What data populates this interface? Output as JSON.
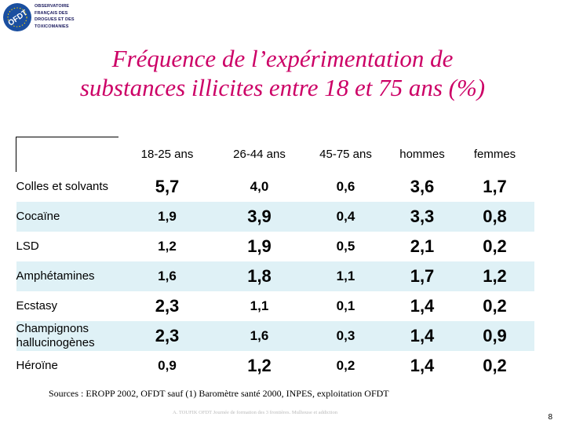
{
  "logo": {
    "badge": "OFDT",
    "lines": [
      "OBSERVATOIRE",
      "FRANÇAIS DES",
      "DROGUES ET DES",
      "TOXICOMANIES"
    ]
  },
  "title": {
    "line1": "Fréquence de l’expérimentation de",
    "line2": "substances illicites entre 18 et 75 ans (%)"
  },
  "table": {
    "headers": [
      "18-25 ans",
      "26-44 ans",
      "45-75 ans",
      "hommes",
      "femmes"
    ],
    "rows": [
      {
        "label": "Colles et solvants",
        "values": [
          "5,7",
          "4,0",
          "0,6",
          "3,6",
          "1,7"
        ],
        "big": [
          true,
          false,
          false,
          true,
          true
        ]
      },
      {
        "label": "Cocaïne",
        "values": [
          "1,9",
          "3,9",
          "0,4",
          "3,3",
          "0,8"
        ],
        "big": [
          false,
          true,
          false,
          true,
          true
        ]
      },
      {
        "label": "LSD",
        "values": [
          "1,2",
          "1,9",
          "0,5",
          "2,1",
          "0,2"
        ],
        "big": [
          false,
          true,
          false,
          true,
          true
        ]
      },
      {
        "label": "Amphétamines",
        "values": [
          "1,6",
          "1,8",
          "1,1",
          "1,7",
          "1,2"
        ],
        "big": [
          false,
          true,
          false,
          true,
          true
        ]
      },
      {
        "label": "Ecstasy",
        "values": [
          "2,3",
          "1,1",
          "0,1",
          "1,4",
          "0,2"
        ],
        "big": [
          true,
          false,
          false,
          true,
          true
        ]
      },
      {
        "label": "Champignons hallucinogènes",
        "values": [
          "2,3",
          "1,6",
          "0,3",
          "1,4",
          "0,9"
        ],
        "big": [
          true,
          false,
          false,
          true,
          true
        ]
      },
      {
        "label": "Héroïne",
        "values": [
          "0,9",
          "1,2",
          "0,2",
          "1,4",
          "0,2"
        ],
        "big": [
          false,
          true,
          false,
          true,
          true
        ]
      }
    ]
  },
  "sources": "Sources : EROPP 2002, OFDT sauf (1) Baromètre santé 2000, INPES, exploitation OFDT",
  "footer": "A. TOUFIK OFDT Journée de formation des 3 frontières. Mulhouse et addiction",
  "page_number": "8",
  "colors": {
    "title": "#cc0066",
    "row_shade": "#dff1f6",
    "logo_blue": "#1a1a5e"
  }
}
